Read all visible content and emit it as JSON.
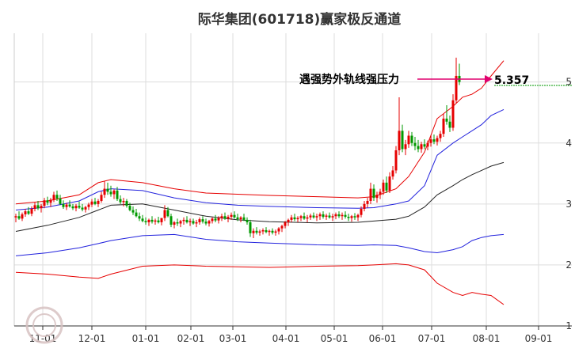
{
  "chart_data": {
    "type": "candlestick",
    "title": "际华集团(601718)赢家极反通道",
    "xlabel": "",
    "ylabel": "",
    "ylim": [
      1,
      5.8
    ],
    "yticks": [
      1,
      2,
      3,
      4,
      5
    ],
    "xticks": [
      "11-01",
      "12-01",
      "01-01",
      "02-01",
      "03-01",
      "04-01",
      "05-01",
      "06-01",
      "07-01",
      "08-01",
      "09-01"
    ],
    "grid": true,
    "annotation": {
      "text": "遇强势外轨线强压力",
      "value_label": "5.357",
      "value": 5.357
    },
    "colors": {
      "up": "#e60000",
      "down": "#009900",
      "upper_outer": "#e60000",
      "upper_inner": "#2222dd",
      "middle": "#222222",
      "lower_inner": "#2222dd",
      "lower_outer": "#e60000",
      "arrow": "#e0006e"
    },
    "series": [
      {
        "role": "upper_outer",
        "points": [
          [
            0,
            3.0
          ],
          [
            10,
            3.05
          ],
          [
            20,
            3.15
          ],
          [
            26,
            3.35
          ],
          [
            30,
            3.4
          ],
          [
            40,
            3.35
          ],
          [
            50,
            3.25
          ],
          [
            60,
            3.18
          ],
          [
            70,
            3.16
          ],
          [
            80,
            3.14
          ],
          [
            95,
            3.12
          ],
          [
            108,
            3.1
          ],
          [
            113,
            3.12
          ],
          [
            120,
            3.25
          ],
          [
            124,
            3.45
          ],
          [
            129,
            3.85
          ],
          [
            133,
            4.4
          ],
          [
            138,
            4.6
          ],
          [
            141,
            4.75
          ],
          [
            144,
            4.8
          ],
          [
            147,
            4.9
          ],
          [
            150,
            5.1
          ],
          [
            154,
            5.35
          ]
        ]
      },
      {
        "role": "upper_inner",
        "points": [
          [
            0,
            2.9
          ],
          [
            10,
            2.95
          ],
          [
            20,
            3.05
          ],
          [
            26,
            3.2
          ],
          [
            30,
            3.25
          ],
          [
            40,
            3.22
          ],
          [
            50,
            3.1
          ],
          [
            60,
            3.02
          ],
          [
            70,
            2.98
          ],
          [
            80,
            2.96
          ],
          [
            95,
            2.94
          ],
          [
            108,
            2.93
          ],
          [
            113,
            2.94
          ],
          [
            120,
            3.0
          ],
          [
            124,
            3.05
          ],
          [
            129,
            3.3
          ],
          [
            133,
            3.8
          ],
          [
            138,
            4.0
          ],
          [
            141,
            4.1
          ],
          [
            144,
            4.2
          ],
          [
            147,
            4.3
          ],
          [
            150,
            4.45
          ],
          [
            154,
            4.55
          ]
        ]
      },
      {
        "role": "middle",
        "points": [
          [
            0,
            2.55
          ],
          [
            10,
            2.65
          ],
          [
            20,
            2.78
          ],
          [
            26,
            2.9
          ],
          [
            30,
            2.98
          ],
          [
            40,
            3.0
          ],
          [
            50,
            2.9
          ],
          [
            60,
            2.8
          ],
          [
            70,
            2.74
          ],
          [
            80,
            2.71
          ],
          [
            95,
            2.69
          ],
          [
            108,
            2.7
          ],
          [
            113,
            2.72
          ],
          [
            120,
            2.75
          ],
          [
            124,
            2.8
          ],
          [
            129,
            2.95
          ],
          [
            133,
            3.15
          ],
          [
            138,
            3.3
          ],
          [
            141,
            3.4
          ],
          [
            144,
            3.48
          ],
          [
            147,
            3.55
          ],
          [
            150,
            3.62
          ],
          [
            154,
            3.68
          ]
        ]
      },
      {
        "role": "lower_inner",
        "points": [
          [
            0,
            2.15
          ],
          [
            10,
            2.2
          ],
          [
            20,
            2.28
          ],
          [
            26,
            2.35
          ],
          [
            30,
            2.4
          ],
          [
            40,
            2.48
          ],
          [
            50,
            2.5
          ],
          [
            60,
            2.42
          ],
          [
            70,
            2.38
          ],
          [
            80,
            2.36
          ],
          [
            95,
            2.33
          ],
          [
            108,
            2.32
          ],
          [
            113,
            2.33
          ],
          [
            120,
            2.32
          ],
          [
            124,
            2.28
          ],
          [
            129,
            2.22
          ],
          [
            133,
            2.2
          ],
          [
            138,
            2.25
          ],
          [
            141,
            2.3
          ],
          [
            144,
            2.4
          ],
          [
            147,
            2.45
          ],
          [
            150,
            2.48
          ],
          [
            154,
            2.5
          ]
        ]
      },
      {
        "role": "lower_outer",
        "points": [
          [
            0,
            1.88
          ],
          [
            10,
            1.85
          ],
          [
            20,
            1.8
          ],
          [
            26,
            1.78
          ],
          [
            30,
            1.85
          ],
          [
            40,
            1.98
          ],
          [
            50,
            2.0
          ],
          [
            60,
            1.98
          ],
          [
            70,
            1.97
          ],
          [
            80,
            1.96
          ],
          [
            95,
            1.98
          ],
          [
            108,
            1.99
          ],
          [
            113,
            2.0
          ],
          [
            120,
            2.02
          ],
          [
            124,
            2.0
          ],
          [
            129,
            1.92
          ],
          [
            133,
            1.7
          ],
          [
            138,
            1.55
          ],
          [
            141,
            1.5
          ],
          [
            144,
            1.55
          ],
          [
            147,
            1.52
          ],
          [
            150,
            1.5
          ],
          [
            154,
            1.35
          ]
        ]
      }
    ],
    "candles_ohlc": [
      [
        2.78,
        2.84,
        2.7,
        2.8
      ],
      [
        2.8,
        2.88,
        2.74,
        2.76
      ],
      [
        2.76,
        2.86,
        2.72,
        2.83
      ],
      [
        2.83,
        2.92,
        2.79,
        2.88
      ],
      [
        2.88,
        2.95,
        2.82,
        2.84
      ],
      [
        2.84,
        2.96,
        2.8,
        2.92
      ],
      [
        2.92,
        3.02,
        2.88,
        2.98
      ],
      [
        2.98,
        3.05,
        2.9,
        2.93
      ],
      [
        2.93,
        3.0,
        2.86,
        2.97
      ],
      [
        2.97,
        3.1,
        2.93,
        3.06
      ],
      [
        3.06,
        3.12,
        2.98,
        3.02
      ],
      [
        3.02,
        3.1,
        2.95,
        3.07
      ],
      [
        3.07,
        3.2,
        3.03,
        3.15
      ],
      [
        3.15,
        3.22,
        3.05,
        3.09
      ],
      [
        3.09,
        3.15,
        2.98,
        3.0
      ],
      [
        3.0,
        3.06,
        2.92,
        2.95
      ],
      [
        2.95,
        3.02,
        2.9,
        2.99
      ],
      [
        2.99,
        3.06,
        2.94,
        2.96
      ],
      [
        2.96,
        3.0,
        2.9,
        2.93
      ],
      [
        2.93,
        3.0,
        2.88,
        2.97
      ],
      [
        2.97,
        3.04,
        2.92,
        2.94
      ],
      [
        2.94,
        3.0,
        2.88,
        2.91
      ],
      [
        2.91,
        2.97,
        2.86,
        2.95
      ],
      [
        2.95,
        3.02,
        2.9,
        2.99
      ],
      [
        2.99,
        3.08,
        2.95,
        3.04
      ],
      [
        3.04,
        3.1,
        2.98,
        3.0
      ],
      [
        3.0,
        3.08,
        2.95,
        3.05
      ],
      [
        3.05,
        3.2,
        3.02,
        3.15
      ],
      [
        3.15,
        3.38,
        3.1,
        3.25
      ],
      [
        3.25,
        3.35,
        3.15,
        3.2
      ],
      [
        3.2,
        3.3,
        3.12,
        3.16
      ],
      [
        3.16,
        3.24,
        3.08,
        3.22
      ],
      [
        3.22,
        3.28,
        3.05,
        3.08
      ],
      [
        3.08,
        3.14,
        3.0,
        3.03
      ],
      [
        3.03,
        3.1,
        2.96,
        3.05
      ],
      [
        3.05,
        3.08,
        2.94,
        2.97
      ],
      [
        2.97,
        3.02,
        2.88,
        2.9
      ],
      [
        2.9,
        2.96,
        2.82,
        2.86
      ],
      [
        2.86,
        2.92,
        2.78,
        2.8
      ],
      [
        2.8,
        2.86,
        2.72,
        2.76
      ],
      [
        2.76,
        2.82,
        2.7,
        2.72
      ],
      [
        2.72,
        2.78,
        2.66,
        2.7
      ],
      [
        2.7,
        2.76,
        2.64,
        2.74
      ],
      [
        2.74,
        2.8,
        2.68,
        2.71
      ],
      [
        2.71,
        2.76,
        2.66,
        2.73
      ],
      [
        2.73,
        2.79,
        2.68,
        2.7
      ],
      [
        2.7,
        2.75,
        2.65,
        2.77
      ],
      [
        2.77,
        2.98,
        2.72,
        2.9
      ],
      [
        2.9,
        2.95,
        2.78,
        2.8
      ],
      [
        2.8,
        2.84,
        2.62,
        2.66
      ],
      [
        2.66,
        2.72,
        2.6,
        2.7
      ],
      [
        2.7,
        2.76,
        2.64,
        2.68
      ],
      [
        2.68,
        2.74,
        2.62,
        2.72
      ],
      [
        2.72,
        2.78,
        2.66,
        2.74
      ],
      [
        2.74,
        2.8,
        2.68,
        2.7
      ],
      [
        2.7,
        2.76,
        2.64,
        2.72
      ],
      [
        2.72,
        2.76,
        2.66,
        2.68
      ],
      [
        2.68,
        2.74,
        2.62,
        2.7
      ],
      [
        2.7,
        2.78,
        2.66,
        2.75
      ],
      [
        2.75,
        2.8,
        2.68,
        2.71
      ],
      [
        2.71,
        2.76,
        2.65,
        2.68
      ],
      [
        2.68,
        2.74,
        2.63,
        2.72
      ],
      [
        2.72,
        2.78,
        2.68,
        2.76
      ],
      [
        2.76,
        2.82,
        2.7,
        2.73
      ],
      [
        2.73,
        2.8,
        2.68,
        2.77
      ],
      [
        2.77,
        2.84,
        2.72,
        2.8
      ],
      [
        2.8,
        2.86,
        2.74,
        2.76
      ],
      [
        2.76,
        2.82,
        2.7,
        2.79
      ],
      [
        2.79,
        2.86,
        2.74,
        2.82
      ],
      [
        2.82,
        2.88,
        2.76,
        2.78
      ],
      [
        2.78,
        2.84,
        2.72,
        2.75
      ],
      [
        2.75,
        2.8,
        2.7,
        2.78
      ],
      [
        2.78,
        2.84,
        2.72,
        2.74
      ],
      [
        2.74,
        2.78,
        2.66,
        2.7
      ],
      [
        2.7,
        2.74,
        2.46,
        2.52
      ],
      [
        2.52,
        2.6,
        2.44,
        2.56
      ],
      [
        2.56,
        2.62,
        2.5,
        2.53
      ],
      [
        2.53,
        2.58,
        2.48,
        2.55
      ],
      [
        2.55,
        2.6,
        2.5,
        2.57
      ],
      [
        2.57,
        2.62,
        2.52,
        2.54
      ],
      [
        2.54,
        2.58,
        2.48,
        2.56
      ],
      [
        2.56,
        2.6,
        2.5,
        2.53
      ],
      [
        2.53,
        2.58,
        2.48,
        2.55
      ],
      [
        2.55,
        2.62,
        2.5,
        2.6
      ],
      [
        2.6,
        2.66,
        2.54,
        2.64
      ],
      [
        2.64,
        2.72,
        2.6,
        2.7
      ],
      [
        2.7,
        2.76,
        2.64,
        2.74
      ],
      [
        2.74,
        2.82,
        2.7,
        2.78
      ],
      [
        2.78,
        2.84,
        2.72,
        2.75
      ],
      [
        2.75,
        2.8,
        2.7,
        2.77
      ],
      [
        2.77,
        2.82,
        2.72,
        2.8
      ],
      [
        2.8,
        2.86,
        2.74,
        2.76
      ],
      [
        2.76,
        2.82,
        2.7,
        2.78
      ],
      [
        2.78,
        2.84,
        2.74,
        2.81
      ],
      [
        2.81,
        2.86,
        2.76,
        2.78
      ],
      [
        2.78,
        2.84,
        2.72,
        2.8
      ],
      [
        2.8,
        2.86,
        2.74,
        2.83
      ],
      [
        2.83,
        2.88,
        2.76,
        2.79
      ],
      [
        2.79,
        2.84,
        2.74,
        2.81
      ],
      [
        2.81,
        2.86,
        2.76,
        2.78
      ],
      [
        2.78,
        2.84,
        2.72,
        2.8
      ],
      [
        2.8,
        2.86,
        2.75,
        2.83
      ],
      [
        2.83,
        2.88,
        2.77,
        2.8
      ],
      [
        2.8,
        2.86,
        2.74,
        2.82
      ],
      [
        2.82,
        2.88,
        2.76,
        2.79
      ],
      [
        2.79,
        2.84,
        2.72,
        2.77
      ],
      [
        2.77,
        2.82,
        2.71,
        2.8
      ],
      [
        2.8,
        2.85,
        2.74,
        2.78
      ],
      [
        2.78,
        2.84,
        2.72,
        2.82
      ],
      [
        2.82,
        2.96,
        2.78,
        2.92
      ],
      [
        2.92,
        3.05,
        2.88,
        3.0
      ],
      [
        3.0,
        3.1,
        2.94,
        3.05
      ],
      [
        3.05,
        3.35,
        3.0,
        3.25
      ],
      [
        3.25,
        3.32,
        3.05,
        3.1
      ],
      [
        3.1,
        3.2,
        3.02,
        3.15
      ],
      [
        3.15,
        3.25,
        3.08,
        3.2
      ],
      [
        3.2,
        3.4,
        3.15,
        3.35
      ],
      [
        3.35,
        3.45,
        3.18,
        3.22
      ],
      [
        3.22,
        3.52,
        3.18,
        3.45
      ],
      [
        3.45,
        3.62,
        3.4,
        3.55
      ],
      [
        3.55,
        3.95,
        3.5,
        3.88
      ],
      [
        3.88,
        4.75,
        3.8,
        4.2
      ],
      [
        4.2,
        4.3,
        3.85,
        3.9
      ],
      [
        3.9,
        4.05,
        3.8,
        3.98
      ],
      [
        3.98,
        4.2,
        3.92,
        4.12
      ],
      [
        4.12,
        4.18,
        3.95,
        4.0
      ],
      [
        4.0,
        4.1,
        3.88,
        3.95
      ],
      [
        3.95,
        4.05,
        3.85,
        3.9
      ],
      [
        3.9,
        4.02,
        3.84,
        3.98
      ],
      [
        3.98,
        4.06,
        3.9,
        3.94
      ],
      [
        3.94,
        4.04,
        3.88,
        4.0
      ],
      [
        4.0,
        4.12,
        3.94,
        4.06
      ],
      [
        4.06,
        4.14,
        3.98,
        4.02
      ],
      [
        4.02,
        4.12,
        3.96,
        4.08
      ],
      [
        4.08,
        4.2,
        4.02,
        4.15
      ],
      [
        4.15,
        4.48,
        4.1,
        4.4
      ],
      [
        4.4,
        4.62,
        4.3,
        4.35
      ],
      [
        4.35,
        4.45,
        4.18,
        4.25
      ],
      [
        4.25,
        4.8,
        4.2,
        4.7
      ],
      [
        4.7,
        5.4,
        4.65,
        5.1
      ],
      [
        5.1,
        5.3,
        4.95,
        5.0
      ]
    ]
  }
}
